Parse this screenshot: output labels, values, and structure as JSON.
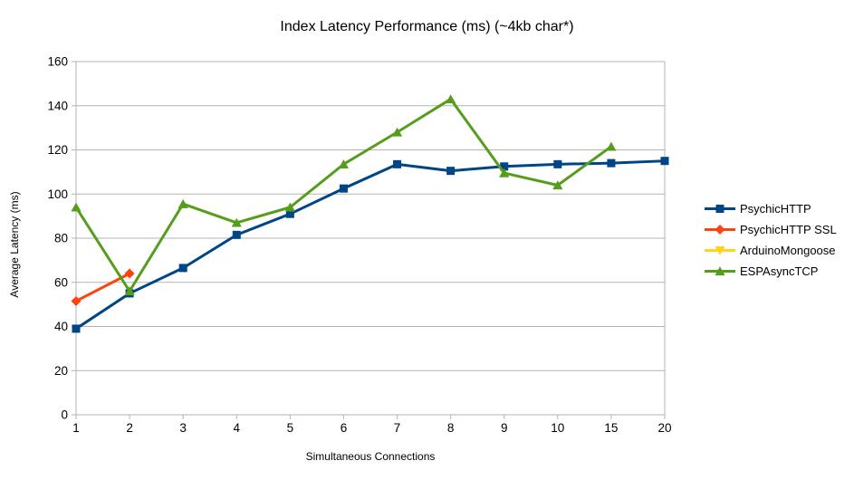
{
  "chart_data": {
    "type": "line",
    "title": "Index Latency Performance (ms) (~4kb char*)",
    "xlabel": "Simultaneous Connections",
    "ylabel": "Average Latency (ms)",
    "x_categories": [
      "1",
      "2",
      "3",
      "4",
      "5",
      "6",
      "7",
      "8",
      "9",
      "10",
      "15",
      "20"
    ],
    "ylim": [
      0,
      160
    ],
    "ytick_step": 20,
    "grid": "horizontal-gridlines",
    "gridline_color": "#b3b3b3",
    "legend_position": "right",
    "series": [
      {
        "name": "PsychicHTTP",
        "color": "#004586",
        "marker": "square",
        "values": [
          39,
          55,
          66.5,
          81.5,
          91,
          102.5,
          113.5,
          110.5,
          112.5,
          113.5,
          114,
          115
        ]
      },
      {
        "name": "PsychicHTTP SSL",
        "color": "#FF420E",
        "marker": "diamond",
        "values": [
          51.5,
          64,
          null,
          null,
          null,
          null,
          null,
          null,
          null,
          null,
          null,
          null
        ]
      },
      {
        "name": "ArduinoMongoose",
        "color": "#FFD320",
        "marker": "triangle-down",
        "values": [
          null,
          null,
          null,
          null,
          null,
          null,
          null,
          null,
          null,
          null,
          null,
          null
        ]
      },
      {
        "name": "ESPAsyncTCP",
        "color": "#579D1C",
        "marker": "triangle-up",
        "values": [
          94,
          56,
          95.5,
          87,
          94,
          113.5,
          128,
          143,
          109.5,
          104,
          121.5,
          null
        ]
      }
    ]
  }
}
